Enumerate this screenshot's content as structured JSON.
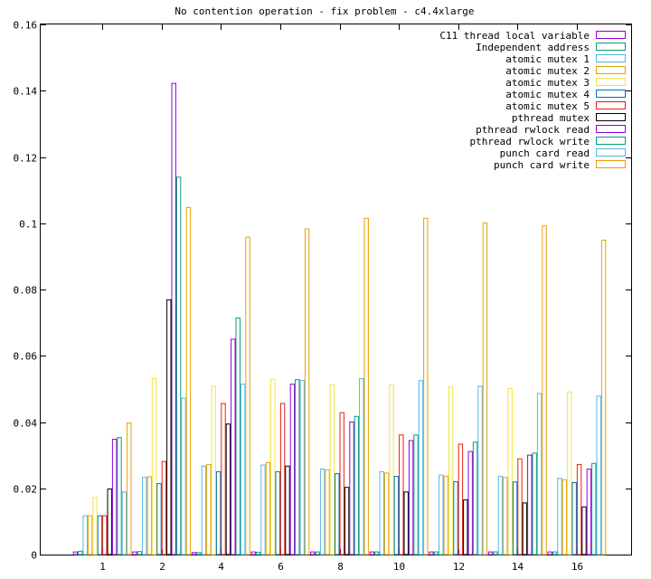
{
  "chart_data": {
    "type": "bar",
    "title": "No contention operation - fix problem - c4.4xlarge",
    "xlabel": "",
    "ylabel": "",
    "ylim": [
      0,
      0.16
    ],
    "yticks": [
      "0",
      "0.02",
      "0.04",
      "0.06",
      "0.08",
      "0.1",
      "0.12",
      "0.14",
      "0.16"
    ],
    "xticks": [
      "1",
      "2",
      "4",
      "6",
      "8",
      "10",
      "12",
      "14",
      "16"
    ],
    "grid": false,
    "legend_position": "top-right",
    "categories": [
      "1",
      "2",
      "4",
      "6",
      "8",
      "10",
      "12",
      "14",
      "16"
    ],
    "series": [
      {
        "name": "C11 thread local variable",
        "color": "#9400d3",
        "values": [
          0.0008,
          0.0008,
          0.0006,
          0.0008,
          0.0008,
          0.0008,
          0.0008,
          0.0008,
          0.0008
        ]
      },
      {
        "name": "Independent address",
        "color": "#009e73",
        "values": [
          0.001,
          0.0009,
          0.0006,
          0.0007,
          0.0008,
          0.0008,
          0.0008,
          0.0008,
          0.0008
        ]
      },
      {
        "name": "atomic mutex 1",
        "color": "#56b4e9",
        "values": [
          0.0117,
          0.0233,
          0.0267,
          0.027,
          0.0258,
          0.025,
          0.024,
          0.0236,
          0.023
        ]
      },
      {
        "name": "atomic mutex 2",
        "color": "#e69f00",
        "values": [
          0.0117,
          0.0235,
          0.0272,
          0.0277,
          0.0256,
          0.0246,
          0.0236,
          0.0233,
          0.0226
        ]
      },
      {
        "name": "atomic mutex 3",
        "color": "#f0e442",
        "values": [
          0.0172,
          0.0531,
          0.0508,
          0.0529,
          0.0512,
          0.0512,
          0.0506,
          0.0501,
          0.0491
        ]
      },
      {
        "name": "atomic mutex 4",
        "color": "#0072b2",
        "values": [
          0.0117,
          0.0214,
          0.025,
          0.025,
          0.0244,
          0.0236,
          0.022,
          0.0219,
          0.0217
        ]
      },
      {
        "name": "atomic mutex 5",
        "color": "#e51e10",
        "values": [
          0.0117,
          0.0281,
          0.0456,
          0.0456,
          0.0428,
          0.0361,
          0.0333,
          0.0289,
          0.0272
        ]
      },
      {
        "name": "pthread mutex",
        "color": "#000000",
        "values": [
          0.0198,
          0.0769,
          0.0394,
          0.0267,
          0.0203,
          0.0189,
          0.0165,
          0.0156,
          0.0144
        ]
      },
      {
        "name": "pthread rwlock read",
        "color": "#9400d3",
        "values": [
          0.0348,
          0.1422,
          0.065,
          0.0514,
          0.04,
          0.0344,
          0.0311,
          0.03,
          0.0258
        ]
      },
      {
        "name": "pthread rwlock write",
        "color": "#009e73",
        "values": [
          0.0353,
          0.1139,
          0.0714,
          0.0528,
          0.0417,
          0.0361,
          0.0339,
          0.0306,
          0.0275
        ]
      },
      {
        "name": "punch card read",
        "color": "#56b4e9",
        "values": [
          0.0189,
          0.0472,
          0.0514,
          0.0525,
          0.0531,
          0.0525,
          0.0508,
          0.0486,
          0.0478
        ]
      },
      {
        "name": "punch card write",
        "color": "#e69f00",
        "values": [
          0.0397,
          0.1047,
          0.0958,
          0.0983,
          0.1015,
          0.1015,
          0.1001,
          0.0992,
          0.0949
        ]
      }
    ]
  }
}
